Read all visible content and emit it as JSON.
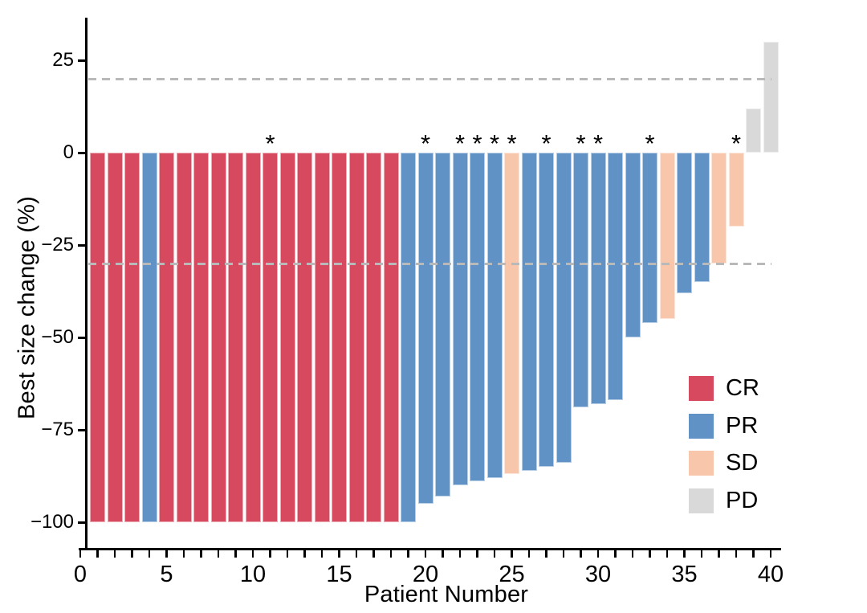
{
  "figure": {
    "background_color": "#ffffff",
    "asterisk_symbol": "*",
    "y_axis": {
      "title": "Best size change (%)",
      "ticks": [
        {
          "value": 25,
          "label": "25"
        },
        {
          "value": 0,
          "label": "0"
        },
        {
          "value": -25,
          "label": "−25"
        },
        {
          "value": -50,
          "label": "−50"
        },
        {
          "value": -75,
          "label": "−75"
        },
        {
          "value": -100,
          "label": "−100"
        }
      ]
    },
    "x_axis": {
      "title": "Patient Number",
      "minor_tick_step": 1,
      "labeled_ticks": [
        {
          "value": 0,
          "label": "0"
        },
        {
          "value": 5,
          "label": "5"
        },
        {
          "value": 10,
          "label": "10"
        },
        {
          "value": 15,
          "label": "15"
        },
        {
          "value": 20,
          "label": "20"
        },
        {
          "value": 25,
          "label": "25"
        },
        {
          "value": 30,
          "label": "30"
        },
        {
          "value": 35,
          "label": "35"
        },
        {
          "value": 40,
          "label": "40"
        }
      ]
    },
    "legend": {
      "position": "inside-right",
      "items": [
        {
          "key": "CR",
          "label": "CR",
          "color": "#d6495e"
        },
        {
          "key": "PR",
          "label": "PR",
          "color": "#6192c6"
        },
        {
          "key": "SD",
          "label": "SD",
          "color": "#f8c6ab"
        },
        {
          "key": "PD",
          "label": "PD",
          "color": "#d9d9d9"
        }
      ]
    }
  },
  "colors": {
    "CR": "#d6495e",
    "PR": "#6192c6",
    "SD": "#f8c6ab",
    "PD": "#d9d9d9",
    "threshold_dash": "#b9b9b9",
    "axis": "#000000",
    "text": "#000000"
  },
  "chart_data": {
    "type": "bar",
    "subtype": "waterfall",
    "title": "",
    "xlabel": "Patient Number",
    "ylabel": "Best size change (%)",
    "xlim": [
      0,
      40
    ],
    "ylim": [
      -100,
      30
    ],
    "grid": false,
    "reference_lines_y": [
      20,
      -30
    ],
    "legend_entries": [
      "CR",
      "PR",
      "SD",
      "PD"
    ],
    "annotation_note": "asterisk markers drawn above x-axis over selected patients",
    "patients": [
      {
        "patient": 1,
        "value": -100,
        "response": "CR",
        "asterisk": false
      },
      {
        "patient": 2,
        "value": -100,
        "response": "CR",
        "asterisk": false
      },
      {
        "patient": 3,
        "value": -100,
        "response": "CR",
        "asterisk": false
      },
      {
        "patient": 4,
        "value": -100,
        "response": "PR",
        "asterisk": false
      },
      {
        "patient": 5,
        "value": -100,
        "response": "CR",
        "asterisk": false
      },
      {
        "patient": 6,
        "value": -100,
        "response": "CR",
        "asterisk": false
      },
      {
        "patient": 7,
        "value": -100,
        "response": "CR",
        "asterisk": false
      },
      {
        "patient": 8,
        "value": -100,
        "response": "CR",
        "asterisk": false
      },
      {
        "patient": 9,
        "value": -100,
        "response": "CR",
        "asterisk": false
      },
      {
        "patient": 10,
        "value": -100,
        "response": "CR",
        "asterisk": false
      },
      {
        "patient": 11,
        "value": -100,
        "response": "CR",
        "asterisk": true
      },
      {
        "patient": 12,
        "value": -100,
        "response": "CR",
        "asterisk": false
      },
      {
        "patient": 13,
        "value": -100,
        "response": "CR",
        "asterisk": false
      },
      {
        "patient": 14,
        "value": -100,
        "response": "CR",
        "asterisk": false
      },
      {
        "patient": 15,
        "value": -100,
        "response": "CR",
        "asterisk": false
      },
      {
        "patient": 16,
        "value": -100,
        "response": "CR",
        "asterisk": false
      },
      {
        "patient": 17,
        "value": -100,
        "response": "CR",
        "asterisk": false
      },
      {
        "patient": 18,
        "value": -100,
        "response": "CR",
        "asterisk": false
      },
      {
        "patient": 19,
        "value": -100,
        "response": "PR",
        "asterisk": false
      },
      {
        "patient": 20,
        "value": -95,
        "response": "PR",
        "asterisk": true
      },
      {
        "patient": 21,
        "value": -93,
        "response": "PR",
        "asterisk": false
      },
      {
        "patient": 22,
        "value": -90,
        "response": "PR",
        "asterisk": true
      },
      {
        "patient": 23,
        "value": -89,
        "response": "PR",
        "asterisk": true
      },
      {
        "patient": 24,
        "value": -88,
        "response": "PR",
        "asterisk": true
      },
      {
        "patient": 25,
        "value": -87,
        "response": "SD",
        "asterisk": true
      },
      {
        "patient": 26,
        "value": -86,
        "response": "PR",
        "asterisk": false
      },
      {
        "patient": 27,
        "value": -85,
        "response": "PR",
        "asterisk": true
      },
      {
        "patient": 28,
        "value": -84,
        "response": "PR",
        "asterisk": false
      },
      {
        "patient": 29,
        "value": -69,
        "response": "PR",
        "asterisk": true
      },
      {
        "patient": 30,
        "value": -68,
        "response": "PR",
        "asterisk": true
      },
      {
        "patient": 31,
        "value": -67,
        "response": "PR",
        "asterisk": false
      },
      {
        "patient": 32,
        "value": -50,
        "response": "PR",
        "asterisk": false
      },
      {
        "patient": 33,
        "value": -46,
        "response": "PR",
        "asterisk": true
      },
      {
        "patient": 34,
        "value": -45,
        "response": "SD",
        "asterisk": false
      },
      {
        "patient": 35,
        "value": -38,
        "response": "PR",
        "asterisk": false
      },
      {
        "patient": 36,
        "value": -35,
        "response": "PR",
        "asterisk": false
      },
      {
        "patient": 37,
        "value": -30,
        "response": "SD",
        "asterisk": false
      },
      {
        "patient": 38,
        "value": -20,
        "response": "SD",
        "asterisk": true
      },
      {
        "patient": 39,
        "value": 12,
        "response": "PD",
        "asterisk": false
      },
      {
        "patient": 40,
        "value": 30,
        "response": "PD",
        "asterisk": false
      }
    ]
  }
}
